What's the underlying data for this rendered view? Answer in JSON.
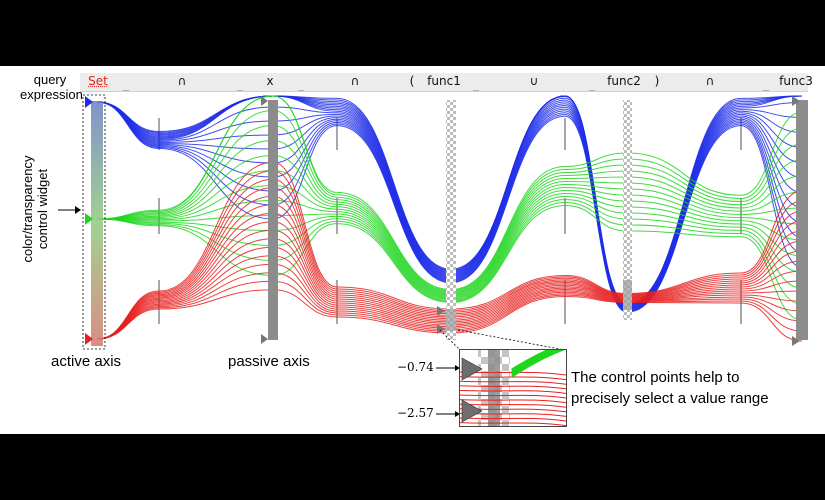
{
  "query": {
    "label_line1": "query",
    "label_line2": "expression",
    "tokens": [
      "Set",
      "_",
      "∩",
      "_",
      "x",
      "_",
      "∩",
      "(",
      "func1",
      "_",
      "∪",
      "_",
      "func2",
      ")",
      "∩",
      "_",
      "func3"
    ]
  },
  "widget_label": {
    "line1": "color/transparency",
    "line2": "control widget"
  },
  "annotations": {
    "active_axis": "active axis",
    "passive_axis": "passive axis"
  },
  "inset": {
    "tick_top": "−0.74",
    "tick_bottom": "−2.57"
  },
  "callout": {
    "line1": "The control points help to",
    "line2": "precisely select a value range"
  },
  "colors": {
    "blue": "#1f2ee8",
    "green": "#1fd61f",
    "red": "#e8201f",
    "axis_gray": "#8a8a8a"
  }
}
